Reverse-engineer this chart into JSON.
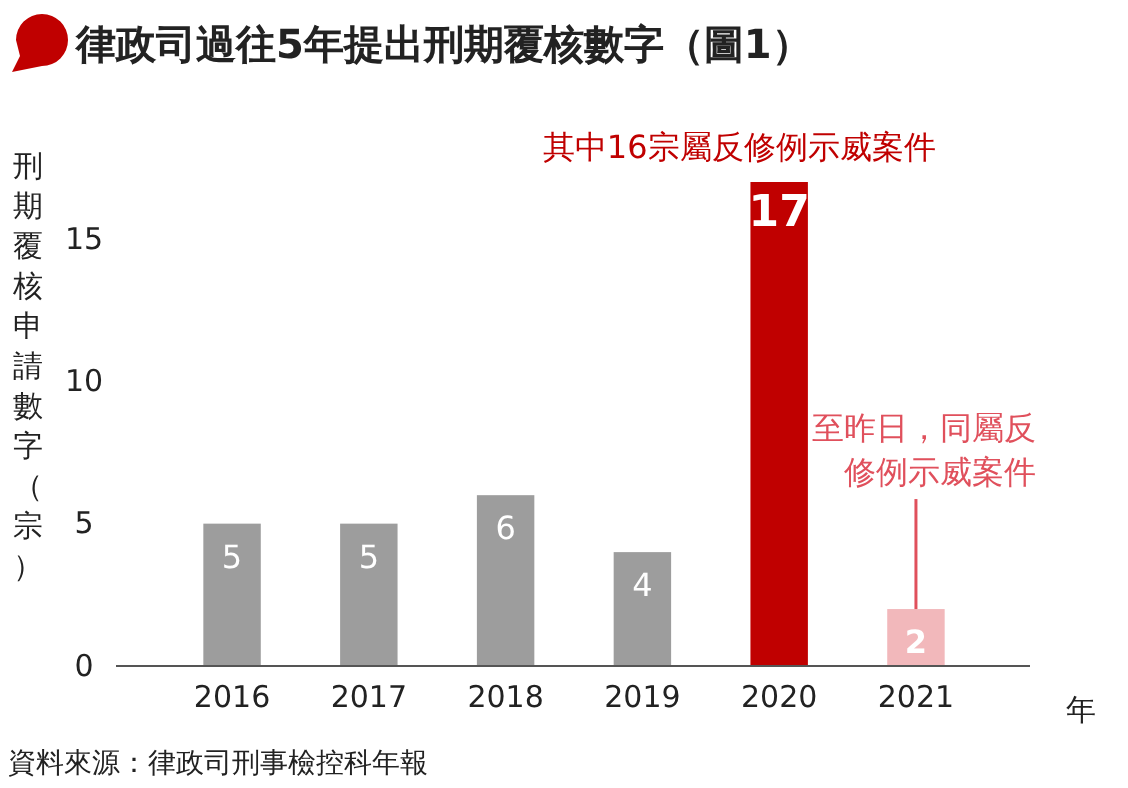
{
  "chart_data": {
    "type": "bar",
    "title": "律政司過往5年提出刑期覆核數字（圖1）",
    "ylabel": "刑期覆核申請數字（宗）",
    "xlabel": "年",
    "categories": [
      "2016",
      "2017",
      "2018",
      "2019",
      "2020",
      "2021"
    ],
    "values": [
      5,
      5,
      6,
      4,
      17,
      2
    ],
    "colors": [
      "#9d9d9d",
      "#9d9d9d",
      "#9d9d9d",
      "#9d9d9d",
      "#c00000",
      "#f2b8bb"
    ],
    "ylim": [
      0,
      17
    ],
    "yticks": [
      0,
      5,
      10,
      15
    ],
    "grid": false,
    "data_labels": true,
    "annotations": [
      {
        "text": "其中16宗屬反修例示威案件",
        "x": "2020",
        "y": 17
      },
      {
        "text": "至昨日，同屬反修例示威案件",
        "x": "2021",
        "y": 2
      },
      "資料來源：律政司刑事檢控科年報"
    ]
  }
}
